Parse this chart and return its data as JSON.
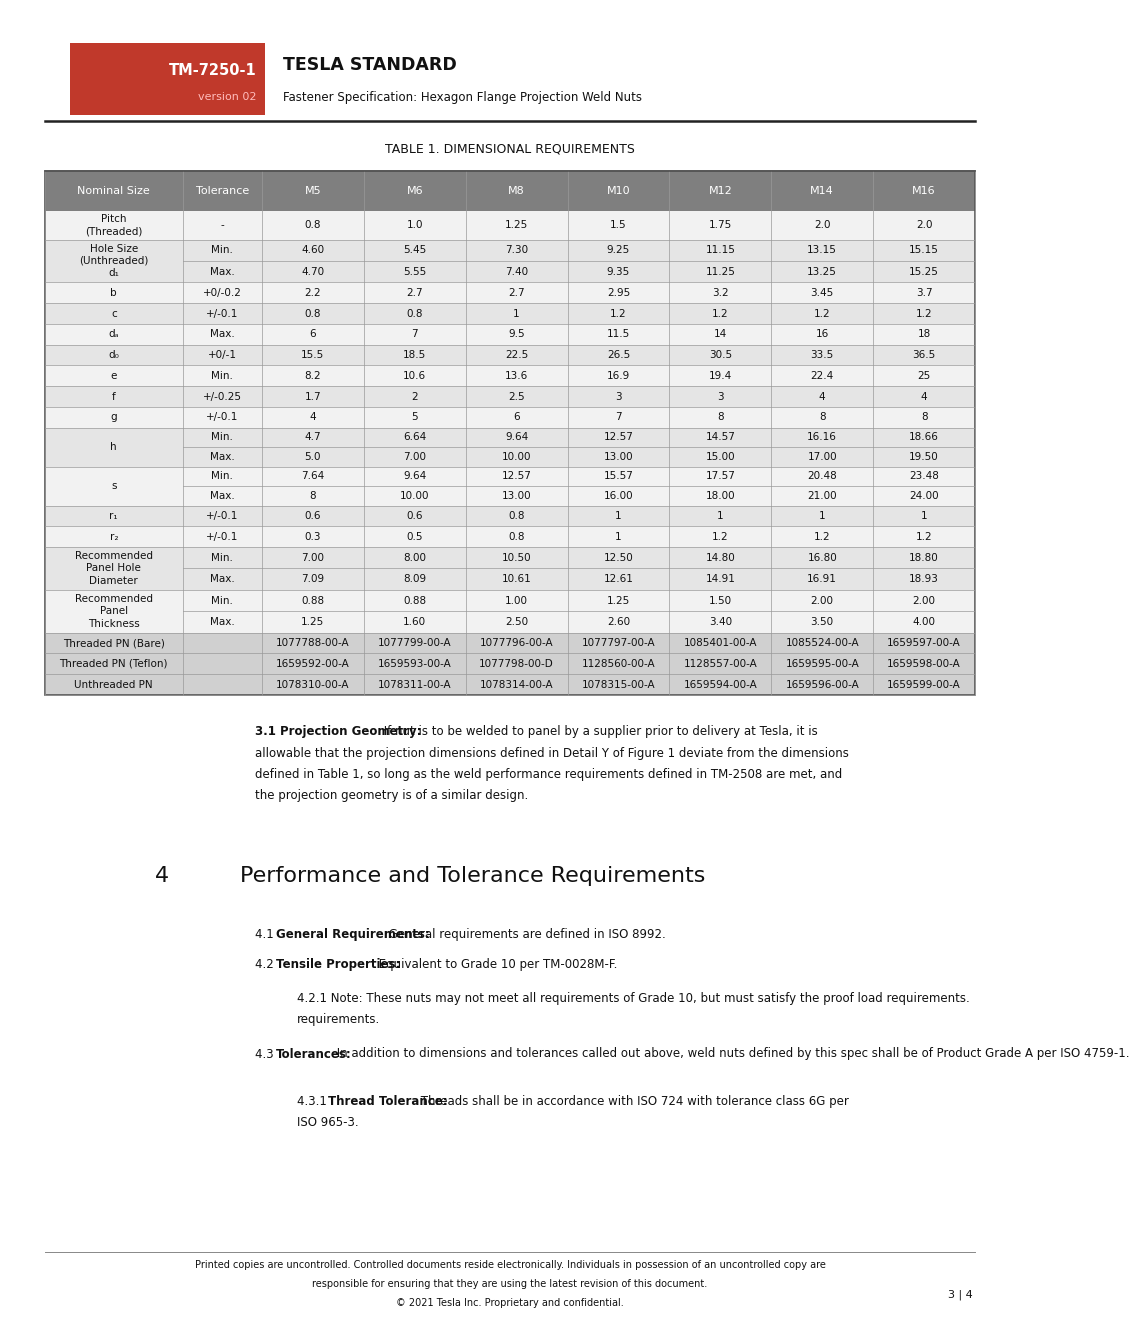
{
  "header_red_text": "TM-7250-1",
  "header_version": "version 02",
  "header_title": "TESLA STANDARD",
  "header_subtitle": "Fastener Specification: Hexagon Flange Projection Weld Nuts",
  "table_title": "TABLE 1. DIMENSIONAL REQUIREMENTS",
  "col_headers": [
    "Nominal Size",
    "Tolerance",
    "M5",
    "M6",
    "M8",
    "M10",
    "M12",
    "M14",
    "M16"
  ],
  "rows": [
    {
      "label": "Pitch\n(Threaded)",
      "tol": "-",
      "vals": [
        "0.8",
        "1.0",
        "1.25",
        "1.5",
        "1.75",
        "2.0",
        "2.0"
      ],
      "span": 1
    },
    {
      "label": "Hole Size\n(Unthreaded)\nd₁",
      "tol_min": "Min.",
      "tol_max": "Max.",
      "vals_min": [
        "4.60",
        "5.45",
        "7.30",
        "9.25",
        "11.15",
        "13.15",
        "15.15"
      ],
      "vals_max": [
        "4.70",
        "5.55",
        "7.40",
        "9.35",
        "11.25",
        "13.25",
        "15.25"
      ],
      "span": 2
    },
    {
      "label": "b",
      "tol": "+0/-0.2",
      "vals": [
        "2.2",
        "2.7",
        "2.7",
        "2.95",
        "3.2",
        "3.45",
        "3.7"
      ],
      "span": 1
    },
    {
      "label": "c",
      "tol": "+/-0.1",
      "vals": [
        "0.8",
        "0.8",
        "1",
        "1.2",
        "1.2",
        "1.2",
        "1.2"
      ],
      "span": 1
    },
    {
      "label": "dₐ",
      "tol": "Max.",
      "vals": [
        "6",
        "7",
        "9.5",
        "11.5",
        "14",
        "16",
        "18"
      ],
      "span": 1
    },
    {
      "label": "d₀",
      "tol": "+0/-1",
      "vals": [
        "15.5",
        "18.5",
        "22.5",
        "26.5",
        "30.5",
        "33.5",
        "36.5"
      ],
      "span": 1
    },
    {
      "label": "e",
      "tol": "Min.",
      "vals": [
        "8.2",
        "10.6",
        "13.6",
        "16.9",
        "19.4",
        "22.4",
        "25"
      ],
      "span": 1
    },
    {
      "label": "f",
      "tol": "+/-0.25",
      "vals": [
        "1.7",
        "2",
        "2.5",
        "3",
        "3",
        "4",
        "4"
      ],
      "span": 1
    },
    {
      "label": "g",
      "tol": "+/-0.1",
      "vals": [
        "4",
        "5",
        "6",
        "7",
        "8",
        "8",
        "8"
      ],
      "span": 1
    },
    {
      "label": "h",
      "tol_min": "Min.",
      "tol_max": "Max.",
      "vals_min": [
        "4.7",
        "6.64",
        "9.64",
        "12.57",
        "14.57",
        "16.16",
        "18.66"
      ],
      "vals_max": [
        "5.0",
        "7.00",
        "10.00",
        "13.00",
        "15.00",
        "17.00",
        "19.50"
      ],
      "span": 2
    },
    {
      "label": "s",
      "tol_min": "Min.",
      "tol_max": "Max.",
      "vals_min": [
        "7.64",
        "9.64",
        "12.57",
        "15.57",
        "17.57",
        "20.48",
        "23.48"
      ],
      "vals_max": [
        "8",
        "10.00",
        "13.00",
        "16.00",
        "18.00",
        "21.00",
        "24.00"
      ],
      "span": 2
    },
    {
      "label": "r₁",
      "tol": "+/-0.1",
      "vals": [
        "0.6",
        "0.6",
        "0.8",
        "1",
        "1",
        "1",
        "1"
      ],
      "span": 1
    },
    {
      "label": "r₂",
      "tol": "+/-0.1",
      "vals": [
        "0.3",
        "0.5",
        "0.8",
        "1",
        "1.2",
        "1.2",
        "1.2"
      ],
      "span": 1
    },
    {
      "label": "Recommended\nPanel Hole\nDiameter",
      "tol_min": "Min.",
      "tol_max": "Max.",
      "vals_min": [
        "7.00",
        "8.00",
        "10.50",
        "12.50",
        "14.80",
        "16.80",
        "18.80"
      ],
      "vals_max": [
        "7.09",
        "8.09",
        "10.61",
        "12.61",
        "14.91",
        "16.91",
        "18.93"
      ],
      "span": 2
    },
    {
      "label": "Recommended\nPanel\nThickness",
      "tol_min": "Min.",
      "tol_max": "Max.",
      "vals_min": [
        "0.88",
        "0.88",
        "1.00",
        "1.25",
        "1.50",
        "2.00",
        "2.00"
      ],
      "vals_max": [
        "1.25",
        "1.60",
        "2.50",
        "2.60",
        "3.40",
        "3.50",
        "4.00"
      ],
      "span": 2
    },
    {
      "label": "Threaded PN (Bare)",
      "tol": "",
      "vals": [
        "1077788-00-A",
        "1077799-00-A",
        "1077796-00-A",
        "1077797-00-A",
        "1085401-00-A",
        "1085524-00-A",
        "1659597-00-A"
      ],
      "span": 1
    },
    {
      "label": "Threaded PN (Teflon)",
      "tol": "",
      "vals": [
        "1659592-00-A",
        "1659593-00-A",
        "1077798-00-D",
        "1128560-00-A",
        "1128557-00-A",
        "1659595-00-A",
        "1659598-00-A"
      ],
      "span": 1
    },
    {
      "label": "Unthreaded PN",
      "tol": "",
      "vals": [
        "1078310-00-A",
        "1078311-00-A",
        "1078314-00-A",
        "1078315-00-A",
        "1659594-00-A",
        "1659596-00-A",
        "1659599-00-A"
      ],
      "span": 1
    }
  ],
  "proj_geo_bold": "3.1 Projection Geometry:",
  "proj_geo_rest": " If nut is to be welded to panel by a supplier prior to delivery at Tesla, it is allowable that the projection dimensions defined in Detail Y of Figure 1 deviate from the dimensions defined in Table 1, so long as the weld performance requirements defined in TM-2508 are met, and the projection geometry is of a similar design.",
  "sec4_title_num": "4",
  "sec4_title_text": "Performance and Tolerance Requirements",
  "sec41_prefix": "4.1 ",
  "sec41_bold": "General Requirements:",
  "sec41_rest": " General requirements are defined in ISO 8992.",
  "sec42_prefix": "4.2 ",
  "sec42_bold": "Tensile Properties:",
  "sec42_rest": " Equivalent to Grade 10 per TM-0028M-F.",
  "sec421_text": "4.2.1 Note: These nuts may not meet all requirements of Grade 10, but must satisfy the proof load requirements.",
  "sec43_prefix": "4.3 ",
  "sec43_bold": "Tolerances:",
  "sec43_rest": " In addition to dimensions and tolerances called out above, weld nuts defined by this spec shall be of Product Grade A per ISO 4759-1.",
  "sec431_prefix": "4.3.1 ",
  "sec431_bold": "Thread Tolerance:",
  "sec431_rest": " Threads shall be in accordance with ISO 724 with tolerance class 6G per ISO 965-3.",
  "footer1_bold": "Printed copies are uncontrolled.",
  "footer1_rest": " Controlled documents reside electronically. Individuals in possession of an uncontrolled copy are responsible for ensuring that they are using the latest revision of this document.",
  "footer2": "© 2021 Tesla Inc. Proprietary and confidential.",
  "footer3": "3 | 4",
  "bg_color": "#ffffff",
  "header_bg": "#c0392b",
  "table_header_bg": "#7f7f7f",
  "text_dark": "#111111",
  "text_white": "#ffffff",
  "table_border_color": "#555555",
  "row_bg_light": "#f2f2f2",
  "row_bg_dark": "#e5e5e5",
  "row_pn_bg": "#d0d0d0",
  "header_line_color": "#222222"
}
